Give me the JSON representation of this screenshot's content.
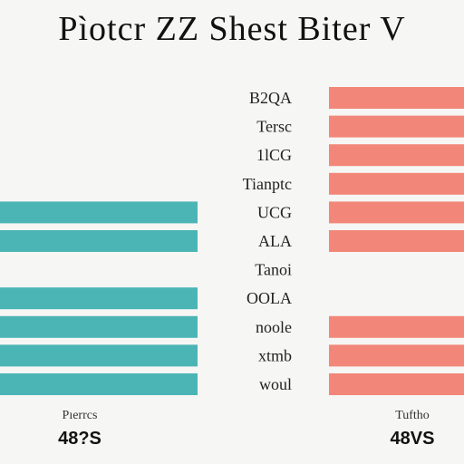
{
  "chart_data": {
    "type": "bar",
    "title": "Pìotcr ZZ Shest Biter V",
    "categories": [
      "B2QA",
      "Tersc",
      "1lCG",
      "Tianptc",
      "UCG",
      "ALA",
      "Tanoi",
      "OOLA",
      "noole",
      "xtmb",
      "woul"
    ],
    "series": [
      {
        "color": "#4bb5b5",
        "values": [
          null,
          null,
          null,
          null,
          100,
          100,
          null,
          100,
          100,
          100,
          100
        ]
      },
      {
        "color": "#f28779",
        "values": [
          100,
          100,
          100,
          100,
          100,
          100,
          null,
          null,
          100,
          100,
          100
        ]
      }
    ],
    "footer": {
      "left_label": "Pıerrcs",
      "left_value": "48?S",
      "right_label": "Tuftho",
      "right_value": "48VS"
    },
    "grid": false,
    "legend": "none"
  }
}
